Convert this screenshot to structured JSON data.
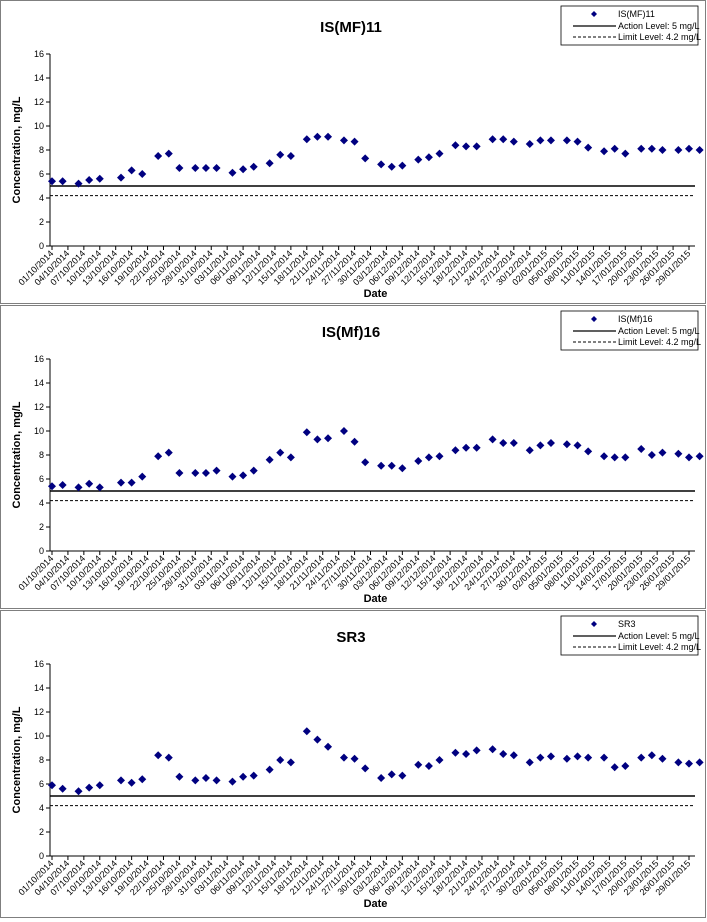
{
  "chart_data": [
    {
      "type": "scatter",
      "title": "IS(MF)11",
      "xlabel": "Date",
      "ylabel": "Concentration, mg/L",
      "ylim": [
        0,
        16
      ],
      "yticks": [
        0,
        2,
        4,
        6,
        8,
        10,
        12,
        14,
        16
      ],
      "grid": false,
      "legend_position": "top-right",
      "x_range": [
        "01/10/2014",
        "29/01/2015"
      ],
      "x_tick_labels": [
        "01/10/2014",
        "04/10/2014",
        "07/10/2014",
        "10/10/2014",
        "13/10/2014",
        "16/10/2014",
        "19/10/2014",
        "22/10/2014",
        "25/10/2014",
        "28/10/2014",
        "31/10/2014",
        "03/11/2014",
        "06/11/2014",
        "09/11/2014",
        "12/11/2014",
        "15/11/2014",
        "18/11/2014",
        "21/11/2014",
        "24/11/2014",
        "27/11/2014",
        "30/11/2014",
        "03/12/2014",
        "06/12/2014",
        "09/12/2014",
        "12/12/2014",
        "15/12/2014",
        "18/12/2014",
        "21/12/2014",
        "24/12/2014",
        "27/12/2014",
        "30/12/2014",
        "02/01/2015",
        "05/01/2015",
        "08/01/2015",
        "11/01/2015",
        "14/01/2015",
        "17/01/2015",
        "20/01/2015",
        "23/01/2015",
        "26/01/2015",
        "29/01/2015"
      ],
      "legend": {
        "series": "IS(MF)11",
        "action": "Action Level: 5 mg/L",
        "limit": "Limit Level: 4.2 mg/L"
      },
      "action_level": 5,
      "limit_level": 4.2,
      "points": [
        {
          "x": "01/10/2014",
          "y": 5.4
        },
        {
          "x": "03/10/2014",
          "y": 5.4
        },
        {
          "x": "06/10/2014",
          "y": 5.2
        },
        {
          "x": "08/10/2014",
          "y": 5.5
        },
        {
          "x": "10/10/2014",
          "y": 5.6
        },
        {
          "x": "14/10/2014",
          "y": 5.7
        },
        {
          "x": "16/10/2014",
          "y": 6.3
        },
        {
          "x": "18/10/2014",
          "y": 6.0
        },
        {
          "x": "21/10/2014",
          "y": 7.5
        },
        {
          "x": "23/10/2014",
          "y": 7.7
        },
        {
          "x": "25/10/2014",
          "y": 6.5
        },
        {
          "x": "28/10/2014",
          "y": 6.5
        },
        {
          "x": "30/10/2014",
          "y": 6.5
        },
        {
          "x": "01/11/2014",
          "y": 6.5
        },
        {
          "x": "04/11/2014",
          "y": 6.1
        },
        {
          "x": "06/11/2014",
          "y": 6.4
        },
        {
          "x": "08/11/2014",
          "y": 6.6
        },
        {
          "x": "11/11/2014",
          "y": 6.9
        },
        {
          "x": "13/11/2014",
          "y": 7.6
        },
        {
          "x": "15/11/2014",
          "y": 7.5
        },
        {
          "x": "18/11/2014",
          "y": 8.9
        },
        {
          "x": "20/11/2014",
          "y": 9.1
        },
        {
          "x": "22/11/2014",
          "y": 9.1
        },
        {
          "x": "25/11/2014",
          "y": 8.8
        },
        {
          "x": "27/11/2014",
          "y": 8.7
        },
        {
          "x": "29/11/2014",
          "y": 7.3
        },
        {
          "x": "02/12/2014",
          "y": 6.8
        },
        {
          "x": "04/12/2014",
          "y": 6.6
        },
        {
          "x": "06/12/2014",
          "y": 6.7
        },
        {
          "x": "09/12/2014",
          "y": 7.2
        },
        {
          "x": "11/12/2014",
          "y": 7.4
        },
        {
          "x": "13/12/2014",
          "y": 7.7
        },
        {
          "x": "16/12/2014",
          "y": 8.4
        },
        {
          "x": "18/12/2014",
          "y": 8.3
        },
        {
          "x": "20/12/2014",
          "y": 8.3
        },
        {
          "x": "23/12/2014",
          "y": 8.9
        },
        {
          "x": "25/12/2014",
          "y": 8.9
        },
        {
          "x": "27/12/2014",
          "y": 8.7
        },
        {
          "x": "30/12/2014",
          "y": 8.5
        },
        {
          "x": "01/01/2015",
          "y": 8.8
        },
        {
          "x": "03/01/2015",
          "y": 8.8
        },
        {
          "x": "06/01/2015",
          "y": 8.8
        },
        {
          "x": "08/01/2015",
          "y": 8.7
        },
        {
          "x": "10/01/2015",
          "y": 8.2
        },
        {
          "x": "13/01/2015",
          "y": 7.9
        },
        {
          "x": "15/01/2015",
          "y": 8.1
        },
        {
          "x": "17/01/2015",
          "y": 7.7
        },
        {
          "x": "20/01/2015",
          "y": 8.1
        },
        {
          "x": "22/01/2015",
          "y": 8.1
        },
        {
          "x": "24/01/2015",
          "y": 8.0
        },
        {
          "x": "27/01/2015",
          "y": 8.0
        },
        {
          "x": "29/01/2015",
          "y": 8.1
        },
        {
          "x": "31/01/2015",
          "y": 8.0
        }
      ]
    },
    {
      "type": "scatter",
      "title": "IS(Mf)16",
      "xlabel": "Date",
      "ylabel": "Concentration, mg/L",
      "ylim": [
        0,
        16
      ],
      "yticks": [
        0,
        2,
        4,
        6,
        8,
        10,
        12,
        14,
        16
      ],
      "grid": false,
      "legend_position": "top-right",
      "x_range": [
        "01/10/2014",
        "29/01/2015"
      ],
      "x_tick_labels": [
        "01/10/2014",
        "04/10/2014",
        "07/10/2014",
        "10/10/2014",
        "13/10/2014",
        "16/10/2014",
        "19/10/2014",
        "22/10/2014",
        "25/10/2014",
        "28/10/2014",
        "31/10/2014",
        "03/11/2014",
        "06/11/2014",
        "09/11/2014",
        "12/11/2014",
        "15/11/2014",
        "18/11/2014",
        "21/11/2014",
        "24/11/2014",
        "27/11/2014",
        "30/11/2014",
        "03/12/2014",
        "06/12/2014",
        "09/12/2014",
        "12/12/2014",
        "15/12/2014",
        "18/12/2014",
        "21/12/2014",
        "24/12/2014",
        "27/12/2014",
        "30/12/2014",
        "02/01/2015",
        "05/01/2015",
        "08/01/2015",
        "11/01/2015",
        "14/01/2015",
        "17/01/2015",
        "20/01/2015",
        "23/01/2015",
        "26/01/2015",
        "29/01/2015"
      ],
      "legend": {
        "series": "IS(Mf)16",
        "action": "Action Level: 5 mg/L",
        "limit": "Limit Level: 4.2 mg/L"
      },
      "action_level": 5,
      "limit_level": 4.2,
      "points": [
        {
          "x": "01/10/2014",
          "y": 5.4
        },
        {
          "x": "03/10/2014",
          "y": 5.5
        },
        {
          "x": "06/10/2014",
          "y": 5.3
        },
        {
          "x": "08/10/2014",
          "y": 5.6
        },
        {
          "x": "10/10/2014",
          "y": 5.3
        },
        {
          "x": "14/10/2014",
          "y": 5.7
        },
        {
          "x": "16/10/2014",
          "y": 5.7
        },
        {
          "x": "18/10/2014",
          "y": 6.2
        },
        {
          "x": "21/10/2014",
          "y": 7.9
        },
        {
          "x": "23/10/2014",
          "y": 8.2
        },
        {
          "x": "25/10/2014",
          "y": 6.5
        },
        {
          "x": "28/10/2014",
          "y": 6.5
        },
        {
          "x": "30/10/2014",
          "y": 6.5
        },
        {
          "x": "01/11/2014",
          "y": 6.7
        },
        {
          "x": "04/11/2014",
          "y": 6.2
        },
        {
          "x": "06/11/2014",
          "y": 6.3
        },
        {
          "x": "08/11/2014",
          "y": 6.7
        },
        {
          "x": "11/11/2014",
          "y": 7.6
        },
        {
          "x": "13/11/2014",
          "y": 8.2
        },
        {
          "x": "15/11/2014",
          "y": 7.8
        },
        {
          "x": "18/11/2014",
          "y": 9.9
        },
        {
          "x": "20/11/2014",
          "y": 9.3
        },
        {
          "x": "22/11/2014",
          "y": 9.4
        },
        {
          "x": "25/11/2014",
          "y": 10.0
        },
        {
          "x": "27/11/2014",
          "y": 9.1
        },
        {
          "x": "29/11/2014",
          "y": 7.4
        },
        {
          "x": "02/12/2014",
          "y": 7.1
        },
        {
          "x": "04/12/2014",
          "y": 7.1
        },
        {
          "x": "06/12/2014",
          "y": 6.9
        },
        {
          "x": "09/12/2014",
          "y": 7.5
        },
        {
          "x": "11/12/2014",
          "y": 7.8
        },
        {
          "x": "13/12/2014",
          "y": 7.9
        },
        {
          "x": "16/12/2014",
          "y": 8.4
        },
        {
          "x": "18/12/2014",
          "y": 8.6
        },
        {
          "x": "20/12/2014",
          "y": 8.6
        },
        {
          "x": "23/12/2014",
          "y": 9.3
        },
        {
          "x": "25/12/2014",
          "y": 9.0
        },
        {
          "x": "27/12/2014",
          "y": 9.0
        },
        {
          "x": "30/12/2014",
          "y": 8.4
        },
        {
          "x": "01/01/2015",
          "y": 8.8
        },
        {
          "x": "03/01/2015",
          "y": 9.0
        },
        {
          "x": "06/01/2015",
          "y": 8.9
        },
        {
          "x": "08/01/2015",
          "y": 8.8
        },
        {
          "x": "10/01/2015",
          "y": 8.3
        },
        {
          "x": "13/01/2015",
          "y": 7.9
        },
        {
          "x": "15/01/2015",
          "y": 7.8
        },
        {
          "x": "17/01/2015",
          "y": 7.8
        },
        {
          "x": "20/01/2015",
          "y": 8.5
        },
        {
          "x": "22/01/2015",
          "y": 8.0
        },
        {
          "x": "24/01/2015",
          "y": 8.2
        },
        {
          "x": "27/01/2015",
          "y": 8.1
        },
        {
          "x": "29/01/2015",
          "y": 7.8
        },
        {
          "x": "31/01/2015",
          "y": 7.9
        }
      ]
    },
    {
      "type": "scatter",
      "title": "SR3",
      "xlabel": "Date",
      "ylabel": "Concentration, mg/L",
      "ylim": [
        0,
        16
      ],
      "yticks": [
        0,
        2,
        4,
        6,
        8,
        10,
        12,
        14,
        16
      ],
      "grid": false,
      "legend_position": "top-right",
      "x_range": [
        "01/10/2014",
        "29/01/2015"
      ],
      "x_tick_labels": [
        "01/10/2014",
        "04/10/2014",
        "07/10/2014",
        "10/10/2014",
        "13/10/2014",
        "16/10/2014",
        "19/10/2014",
        "22/10/2014",
        "25/10/2014",
        "28/10/2014",
        "31/10/2014",
        "03/11/2014",
        "06/11/2014",
        "09/11/2014",
        "12/11/2014",
        "15/11/2014",
        "18/11/2014",
        "21/11/2014",
        "24/11/2014",
        "27/11/2014",
        "30/11/2014",
        "03/12/2014",
        "06/12/2014",
        "09/12/2014",
        "12/12/2014",
        "15/12/2014",
        "18/12/2014",
        "21/12/2014",
        "24/12/2014",
        "27/12/2014",
        "30/12/2014",
        "02/01/2015",
        "05/01/2015",
        "08/01/2015",
        "11/01/2015",
        "14/01/2015",
        "17/01/2015",
        "20/01/2015",
        "23/01/2015",
        "26/01/2015",
        "29/01/2015"
      ],
      "legend": {
        "series": "SR3",
        "action": "Action Level: 5 mg/L",
        "limit": "Limit Level: 4.2 mg/L"
      },
      "action_level": 5,
      "limit_level": 4.2,
      "points": [
        {
          "x": "01/10/2014",
          "y": 5.9
        },
        {
          "x": "03/10/2014",
          "y": 5.6
        },
        {
          "x": "06/10/2014",
          "y": 5.4
        },
        {
          "x": "08/10/2014",
          "y": 5.7
        },
        {
          "x": "10/10/2014",
          "y": 5.9
        },
        {
          "x": "14/10/2014",
          "y": 6.3
        },
        {
          "x": "16/10/2014",
          "y": 6.1
        },
        {
          "x": "18/10/2014",
          "y": 6.4
        },
        {
          "x": "21/10/2014",
          "y": 8.4
        },
        {
          "x": "23/10/2014",
          "y": 8.2
        },
        {
          "x": "25/10/2014",
          "y": 6.6
        },
        {
          "x": "28/10/2014",
          "y": 6.3
        },
        {
          "x": "30/10/2014",
          "y": 6.5
        },
        {
          "x": "01/11/2014",
          "y": 6.3
        },
        {
          "x": "04/11/2014",
          "y": 6.2
        },
        {
          "x": "06/11/2014",
          "y": 6.6
        },
        {
          "x": "08/11/2014",
          "y": 6.7
        },
        {
          "x": "11/11/2014",
          "y": 7.2
        },
        {
          "x": "13/11/2014",
          "y": 8.0
        },
        {
          "x": "15/11/2014",
          "y": 7.8
        },
        {
          "x": "18/11/2014",
          "y": 10.4
        },
        {
          "x": "20/11/2014",
          "y": 9.7
        },
        {
          "x": "22/11/2014",
          "y": 9.1
        },
        {
          "x": "25/11/2014",
          "y": 8.2
        },
        {
          "x": "27/11/2014",
          "y": 8.1
        },
        {
          "x": "29/11/2014",
          "y": 7.3
        },
        {
          "x": "02/12/2014",
          "y": 6.5
        },
        {
          "x": "04/12/2014",
          "y": 6.8
        },
        {
          "x": "06/12/2014",
          "y": 6.7
        },
        {
          "x": "09/12/2014",
          "y": 7.6
        },
        {
          "x": "11/12/2014",
          "y": 7.5
        },
        {
          "x": "13/12/2014",
          "y": 8.0
        },
        {
          "x": "16/12/2014",
          "y": 8.6
        },
        {
          "x": "18/12/2014",
          "y": 8.5
        },
        {
          "x": "20/12/2014",
          "y": 8.8
        },
        {
          "x": "23/12/2014",
          "y": 8.9
        },
        {
          "x": "25/12/2014",
          "y": 8.5
        },
        {
          "x": "27/12/2014",
          "y": 8.4
        },
        {
          "x": "30/12/2014",
          "y": 7.8
        },
        {
          "x": "01/01/2015",
          "y": 8.2
        },
        {
          "x": "03/01/2015",
          "y": 8.3
        },
        {
          "x": "06/01/2015",
          "y": 8.1
        },
        {
          "x": "08/01/2015",
          "y": 8.3
        },
        {
          "x": "10/01/2015",
          "y": 8.2
        },
        {
          "x": "13/01/2015",
          "y": 8.2
        },
        {
          "x": "15/01/2015",
          "y": 7.4
        },
        {
          "x": "17/01/2015",
          "y": 7.5
        },
        {
          "x": "20/01/2015",
          "y": 8.2
        },
        {
          "x": "22/01/2015",
          "y": 8.4
        },
        {
          "x": "24/01/2015",
          "y": 8.1
        },
        {
          "x": "27/01/2015",
          "y": 7.8
        },
        {
          "x": "29/01/2015",
          "y": 7.7
        },
        {
          "x": "31/01/2015",
          "y": 7.8
        }
      ]
    }
  ],
  "colors": {
    "marker": "#000080",
    "action_line": "#000000",
    "limit_line": "#000000",
    "axis": "#000000",
    "frame": "#7f7f7f"
  },
  "icons": {
    "legend_marker": "diamond-marker-icon"
  }
}
